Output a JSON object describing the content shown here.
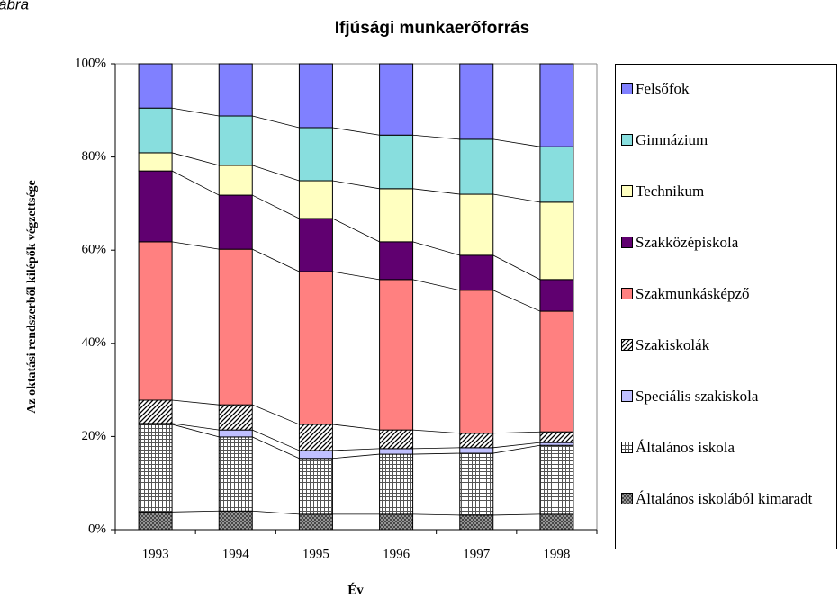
{
  "caption": "ábra",
  "chart_data": {
    "type": "stacked_bar_100",
    "title": "Ifjúsági munkaerőforrás",
    "x_label": "Év",
    "y_label": "Az oktatási rendszerből kilépők végzettsége",
    "categories": [
      "1993",
      "1994",
      "1995",
      "1996",
      "1997",
      "1998"
    ],
    "series": [
      {
        "name": "Általános iskolából kimaradt",
        "color": "#808080",
        "pattern": "crosshatch",
        "values": [
          3.8,
          4.0,
          3.3,
          3.3,
          3.1,
          3.3
        ]
      },
      {
        "name": "Általános iskola",
        "color": "#808080",
        "pattern": "grid",
        "values": [
          18.8,
          15.9,
          12.0,
          12.9,
          13.3,
          14.8
        ]
      },
      {
        "name": "Speciális szakiskola",
        "color": "#c0c0ff",
        "values": [
          0.2,
          1.5,
          1.7,
          1.2,
          1.2,
          0.6
        ]
      },
      {
        "name": "Szakiskolák",
        "color": "#000000",
        "pattern": "diagonal",
        "values": [
          5.0,
          5.4,
          5.6,
          4.0,
          3.1,
          2.3
        ]
      },
      {
        "name": "Szakmunkásképző",
        "color": "#ff8080",
        "values": [
          34.0,
          33.4,
          32.8,
          32.3,
          30.7,
          25.9
        ]
      },
      {
        "name": "Szakközépiskola",
        "color": "#600070",
        "values": [
          15.2,
          11.6,
          11.4,
          8.1,
          7.5,
          6.8
        ]
      },
      {
        "name": "Technikum",
        "color": "#ffffc0",
        "values": [
          3.9,
          6.4,
          8.1,
          11.4,
          13.1,
          16.6
        ]
      },
      {
        "name": "Gimnázium",
        "color": "#88dede",
        "values": [
          9.6,
          10.6,
          11.4,
          11.5,
          11.8,
          11.9
        ]
      },
      {
        "name": "Felsőfok",
        "color": "#8080ff",
        "values": [
          9.5,
          11.2,
          13.7,
          15.3,
          16.2,
          17.8
        ]
      }
    ],
    "ylim": [
      0,
      100
    ],
    "yticks": [
      {
        "value": 0,
        "label": "0%"
      },
      {
        "value": 20,
        "label": "20%"
      },
      {
        "value": 40,
        "label": "40%"
      },
      {
        "value": 60,
        "label": "60%"
      },
      {
        "value": 80,
        "label": "80%"
      },
      {
        "value": 100,
        "label": "100%"
      }
    ],
    "legend": "right"
  }
}
